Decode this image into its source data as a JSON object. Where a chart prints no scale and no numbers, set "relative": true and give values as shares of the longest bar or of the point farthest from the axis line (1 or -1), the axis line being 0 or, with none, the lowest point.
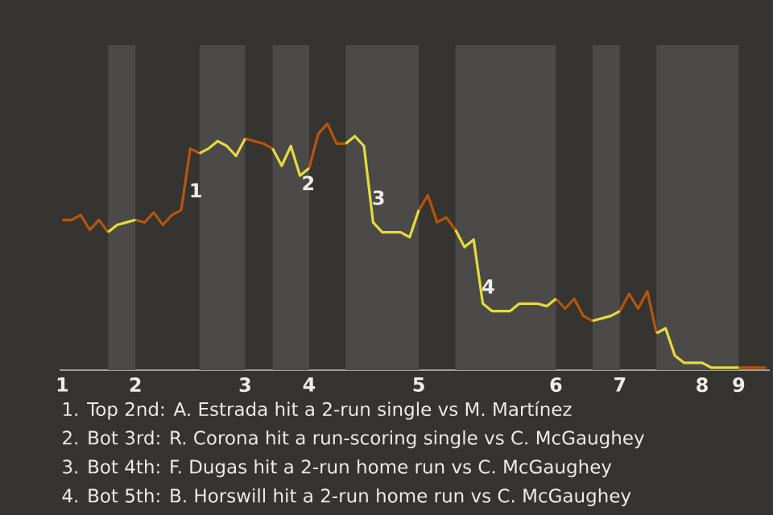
{
  "chart_data": {
    "type": "line",
    "relative": true,
    "categories": [
      "1",
      null,
      null,
      null,
      null,
      null,
      null,
      null,
      "2",
      null,
      null,
      null,
      null,
      null,
      null,
      null,
      null,
      null,
      null,
      null,
      "3",
      null,
      null,
      null,
      null,
      null,
      null,
      "4",
      null,
      null,
      null,
      null,
      null,
      null,
      null,
      null,
      null,
      null,
      null,
      "5",
      null,
      null,
      null,
      null,
      null,
      null,
      null,
      null,
      null,
      null,
      null,
      null,
      null,
      null,
      "6",
      null,
      null,
      null,
      null,
      null,
      null,
      "7",
      null,
      null,
      null,
      null,
      null,
      null,
      null,
      null,
      "8",
      null,
      null,
      null,
      "9",
      null,
      null,
      null
    ],
    "marker": "none",
    "line_style": "solid",
    "series": [
      {
        "color": "#b4560c",
        "values": [
          0.61,
          0.61,
          0.63,
          0.57,
          0.61,
          0.56,
          null,
          null,
          0.61,
          0.6,
          0.64,
          0.59,
          0.63,
          0.65,
          0.9,
          0.88,
          null,
          null,
          null,
          null,
          0.94,
          0.93,
          0.92,
          0.9,
          null,
          null,
          null,
          0.82,
          0.96,
          1.0,
          0.92,
          0.92,
          null,
          null,
          null,
          null,
          null,
          null,
          null,
          0.65,
          0.71,
          0.6,
          0.62,
          0.57,
          null,
          null,
          null,
          null,
          null,
          null,
          null,
          null,
          null,
          null,
          0.29,
          0.25,
          0.29,
          0.22,
          0.2,
          null,
          null,
          0.24,
          0.31,
          0.25,
          0.32,
          0.15,
          null,
          null,
          null,
          null,
          0.03,
          0.01,
          null,
          null,
          0.01,
          0.01,
          0.01,
          0.01
        ]
      },
      {
        "color": "#e6db3a",
        "values": [
          null,
          null,
          null,
          null,
          null,
          0.56,
          0.59,
          0.6,
          0.61,
          null,
          null,
          null,
          null,
          null,
          null,
          0.88,
          0.9,
          0.93,
          0.91,
          0.87,
          0.94,
          null,
          null,
          0.9,
          0.83,
          0.91,
          0.79,
          0.82,
          null,
          null,
          null,
          0.92,
          0.95,
          0.91,
          0.6,
          0.56,
          0.56,
          0.56,
          0.54,
          0.65,
          null,
          null,
          null,
          0.57,
          0.5,
          0.53,
          0.27,
          0.24,
          0.24,
          0.24,
          0.27,
          0.27,
          0.27,
          0.26,
          0.29,
          null,
          null,
          null,
          0.2,
          0.21,
          0.22,
          0.24,
          null,
          null,
          null,
          0.15,
          0.17,
          0.06,
          0.03,
          0.03,
          0.03,
          0.01,
          0.01,
          0.01,
          0.01,
          null,
          null,
          null
        ]
      }
    ],
    "annotations": [
      "1",
      "2",
      "3",
      "4",
      "1. Top 2nd: A. Estrada hit a 2-run single vs M. Martínez",
      "2. Bot 3rd: R. Corona hit a run-scoring single vs C. McGaughey",
      "3. Bot 4th: F. Dugas hit a 2-run home run vs C. McGaughey",
      "4. Bot 5th: B. Horswill hit a 2-run home run vs C. McGaughey"
    ]
  }
}
